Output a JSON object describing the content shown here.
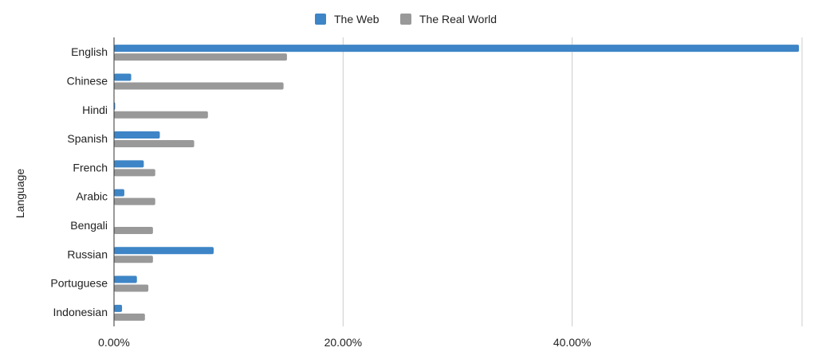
{
  "chart_data": {
    "type": "bar",
    "orientation": "horizontal",
    "title": "",
    "xlabel": "",
    "ylabel": "Language",
    "categories": [
      "English",
      "Chinese",
      "Hindi",
      "Spanish",
      "French",
      "Arabic",
      "Bengali",
      "Russian",
      "Portuguese",
      "Indonesian"
    ],
    "series": [
      {
        "name": "The Web",
        "color": "#3d85c6",
        "values": [
          59.8,
          1.5,
          0.1,
          4.0,
          2.6,
          0.9,
          0.0,
          8.7,
          2.0,
          0.7
        ]
      },
      {
        "name": "The Real World",
        "color": "#999999",
        "values": [
          15.1,
          14.8,
          8.2,
          7.0,
          3.6,
          3.6,
          3.4,
          3.4,
          3.0,
          2.7
        ]
      }
    ],
    "xlim": [
      0,
      60
    ],
    "xticks": [
      {
        "value": 0,
        "label": "0.00%"
      },
      {
        "value": 20,
        "label": "20.00%"
      },
      {
        "value": 40,
        "label": "40.00%"
      }
    ],
    "grid": true,
    "legend_position": "top-center"
  }
}
